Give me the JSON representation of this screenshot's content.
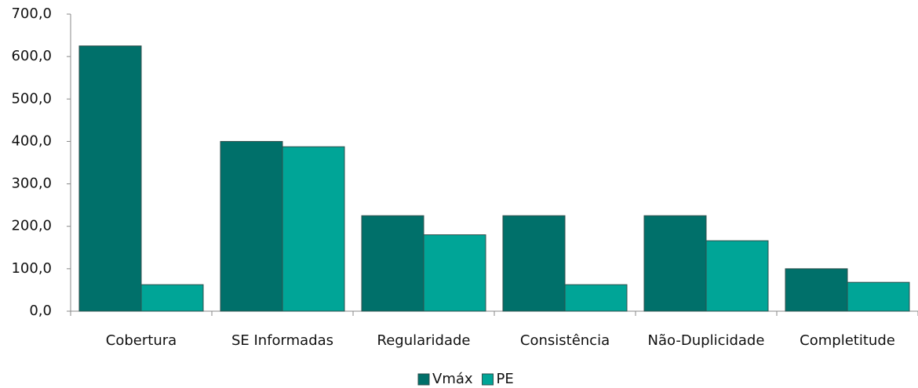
{
  "chart_data": {
    "type": "bar",
    "categories": [
      "Cobertura",
      "SE Informadas",
      "Regularidade",
      "Consistência",
      "Não-Duplicidade",
      "Completitude"
    ],
    "series": [
      {
        "name": "Vmáx",
        "color": "#00706a",
        "values": [
          625,
          400,
          225,
          225,
          225,
          100
        ]
      },
      {
        "name": "PE",
        "color": "#00a597",
        "values": [
          62.5,
          387.5,
          180,
          62.5,
          166,
          68
        ]
      }
    ],
    "ylim": [
      0,
      700
    ],
    "yticks": [
      {
        "value": 0,
        "label": "0,0"
      },
      {
        "value": 100,
        "label": "100,0"
      },
      {
        "value": 200,
        "label": "200,0"
      },
      {
        "value": 300,
        "label": "300,0"
      },
      {
        "value": 400,
        "label": "400,0"
      },
      {
        "value": 500,
        "label": "500,0"
      },
      {
        "value": 600,
        "label": "600,0"
      },
      {
        "value": 700,
        "label": "700,0"
      }
    ],
    "grid": false,
    "legend": "bottom"
  }
}
